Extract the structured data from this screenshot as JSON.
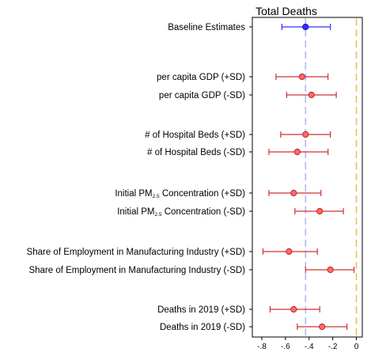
{
  "chart_data": {
    "type": "scatter",
    "subtype": "forest-plot",
    "title": "Total Deaths",
    "x_ticks": [
      -0.8,
      -0.6,
      -0.4,
      -0.2,
      0
    ],
    "x_tick_labels": [
      "-.8",
      "-.6",
      "-.4",
      "-.2",
      "0"
    ],
    "xlim": [
      -0.88,
      0.05
    ],
    "grid": false,
    "reference_lines": [
      {
        "x": -0.43,
        "style": "dashed",
        "color": "#b8b8f0"
      },
      {
        "x": 0,
        "style": "dashed",
        "color": "#e8c060"
      }
    ],
    "rows": [
      {
        "label": "Baseline Estimates",
        "estimate": -0.43,
        "lower": -0.63,
        "upper": -0.22,
        "color": "blue"
      },
      {
        "label": "per capita GDP (+SD)",
        "estimate": -0.46,
        "lower": -0.68,
        "upper": -0.24,
        "color": "red"
      },
      {
        "label": "per capita GDP (-SD)",
        "estimate": -0.38,
        "lower": -0.59,
        "upper": -0.17,
        "color": "red"
      },
      {
        "label": "# of Hospital Beds (+SD)",
        "estimate": -0.43,
        "lower": -0.64,
        "upper": -0.22,
        "color": "red"
      },
      {
        "label": "# of Hospital Beds (-SD)",
        "estimate": -0.5,
        "lower": -0.74,
        "upper": -0.24,
        "color": "red"
      },
      {
        "label": "Initial PM2.5 Concentration (+SD)",
        "estimate": -0.53,
        "lower": -0.74,
        "upper": -0.3,
        "color": "red"
      },
      {
        "label": "Initial PM2.5 Concentration (-SD)",
        "estimate": -0.31,
        "lower": -0.52,
        "upper": -0.11,
        "color": "red"
      },
      {
        "label": "Share of Employment in Manufacturing Industry (+SD)",
        "estimate": -0.57,
        "lower": -0.79,
        "upper": -0.33,
        "color": "red"
      },
      {
        "label": "Share of Employment in Manufacturing Industry (-SD)",
        "estimate": -0.22,
        "lower": -0.43,
        "upper": -0.02,
        "color": "red"
      },
      {
        "label": "Deaths in 2019 (+SD)",
        "estimate": -0.53,
        "lower": -0.73,
        "upper": -0.31,
        "color": "red"
      },
      {
        "label": "Deaths in 2019 (-SD)",
        "estimate": -0.29,
        "lower": -0.5,
        "upper": -0.08,
        "color": "red"
      }
    ],
    "colors": {
      "baseline": "#3030ff",
      "red_fill": "#ff6a6a",
      "red_stroke": "#c02020",
      "red_line": "#d03030"
    }
  }
}
